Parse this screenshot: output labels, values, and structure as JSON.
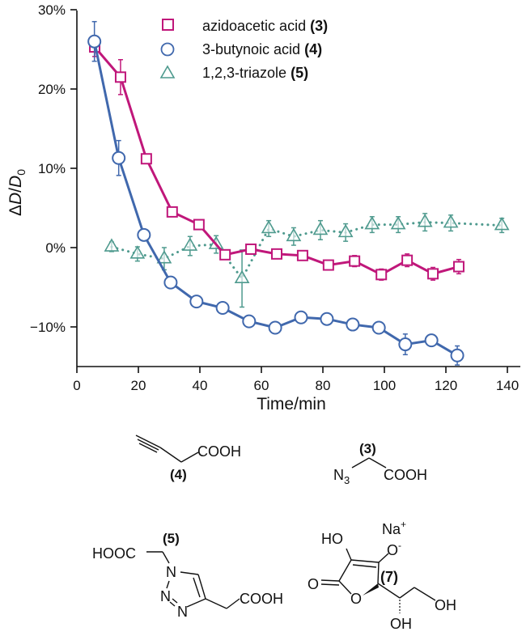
{
  "chart_data": {
    "type": "line",
    "title": "",
    "xlabel": "Time/min",
    "ylabel": "ΔD/D0",
    "ylabel_parts": {
      "delta": "Δ",
      "var": "D",
      "slash": "/",
      "den": "D",
      "sub": "0"
    },
    "xlim": [
      0,
      144
    ],
    "ylim": [
      -15,
      30
    ],
    "xticks": [
      0,
      20,
      40,
      60,
      80,
      100,
      120,
      140
    ],
    "xtick_labels": [
      "0",
      "20",
      "40",
      "60",
      "80",
      "100",
      "120",
      "140"
    ],
    "yticks": [
      -10,
      0,
      10,
      20,
      30
    ],
    "ytick_labels": [
      "−10%",
      "0%",
      "10%",
      "20%",
      "30%"
    ],
    "grid": false,
    "legend_position": "top-center",
    "series": [
      {
        "name": "azidoacetic acid",
        "label_num": "(3)",
        "marker": "square",
        "line": "solid",
        "color": "#c0177a",
        "x": [
          5.8,
          14.2,
          22.6,
          31.0,
          39.7,
          48.2,
          56.6,
          65.0,
          73.4,
          81.8,
          90.3,
          99.0,
          107.4,
          115.8,
          124.2
        ],
        "y": [
          25.3,
          21.5,
          11.2,
          4.5,
          2.9,
          -0.9,
          -0.2,
          -0.8,
          -1.0,
          -2.2,
          -1.7,
          -3.4,
          -1.6,
          -3.3,
          -2.4
        ],
        "err": [
          1.2,
          2.2,
          0.5,
          0.4,
          0.4,
          0.5,
          0.4,
          0.5,
          0.6,
          0.5,
          0.7,
          0.7,
          0.8,
          0.8,
          0.9
        ]
      },
      {
        "name": "3-butynoic acid",
        "label_num": "(4)",
        "marker": "circle",
        "line": "solid",
        "color": "#4068ad",
        "x": [
          5.7,
          13.6,
          21.8,
          30.5,
          38.9,
          47.4,
          56.0,
          64.5,
          72.9,
          81.3,
          89.7,
          98.2,
          106.8,
          115.3,
          123.7
        ],
        "y": [
          26.0,
          11.3,
          1.6,
          -4.4,
          -6.8,
          -7.6,
          -9.3,
          -10.1,
          -8.8,
          -9.0,
          -9.7,
          -10.1,
          -12.2,
          -11.7,
          -13.6
        ],
        "err": [
          2.5,
          2.2,
          0.7,
          0.3,
          0.3,
          0.4,
          0.4,
          0.6,
          0.3,
          0.4,
          0.3,
          0.3,
          1.3,
          0.4,
          1.2
        ]
      },
      {
        "name": "1,2,3-triazole",
        "label_num": "(5)",
        "marker": "triangle",
        "line": "dotted",
        "color": "#4e9a8e",
        "x": [
          11.3,
          19.7,
          28.4,
          36.8,
          45.3,
          53.7,
          62.4,
          70.5,
          79.2,
          87.4,
          96.0,
          104.5,
          113.2,
          121.6,
          138.2
        ],
        "y": [
          0.1,
          -0.8,
          -1.4,
          0.2,
          0.4,
          -3.9,
          2.4,
          1.4,
          2.2,
          1.9,
          2.9,
          2.9,
          3.2,
          3.1,
          2.8
        ],
        "err": [
          0.6,
          0.9,
          1.4,
          1.2,
          1.1,
          3.6,
          1.0,
          1.1,
          1.2,
          1.1,
          1.0,
          1.0,
          1.1,
          1.0,
          0.9
        ]
      }
    ]
  },
  "structures": {
    "butynoic": {
      "cooh": "COOH",
      "label": "(4)"
    },
    "azido": {
      "n3_main": "N",
      "n3_sub": "3",
      "cooh": "COOH",
      "label": "(3)"
    },
    "triazole": {
      "hooc": "HOOC",
      "n1": "N",
      "n2": "N",
      "n3": "N",
      "cooh": "COOH",
      "label": "(5)"
    },
    "ascorbate": {
      "na": "Na",
      "na_sup": "+",
      "ho": "HO",
      "o_minus": "O",
      "o_minus_sup": "-",
      "o_carbonyl": "O",
      "o_ring": "O",
      "oh1": "OH",
      "oh2": "OH",
      "label": "(7)"
    }
  }
}
